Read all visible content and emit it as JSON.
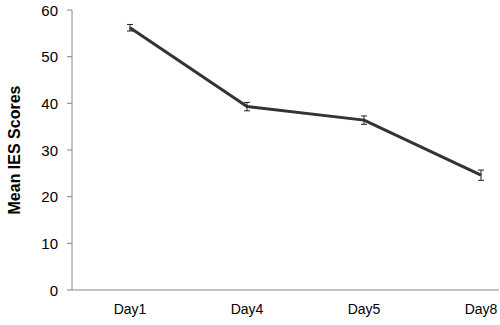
{
  "chart_data": {
    "type": "line",
    "y_label": "Mean IES Scores",
    "categories": [
      "Day1",
      "Day4",
      "Day5",
      "Day8"
    ],
    "values": [
      56.2,
      39.3,
      36.4,
      24.6
    ],
    "errors": [
      0.7,
      0.9,
      0.9,
      1.1
    ],
    "color": "#333333",
    "ylim": [
      0,
      60
    ],
    "yticks": [
      0,
      10,
      20,
      30,
      40,
      50,
      60
    ],
    "grid": false
  }
}
